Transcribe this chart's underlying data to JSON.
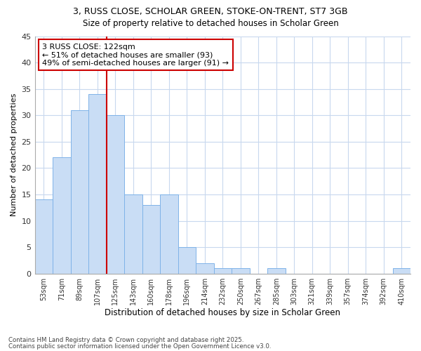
{
  "title1": "3, RUSS CLOSE, SCHOLAR GREEN, STOKE-ON-TRENT, ST7 3GB",
  "title2": "Size of property relative to detached houses in Scholar Green",
  "xlabel": "Distribution of detached houses by size in Scholar Green",
  "ylabel": "Number of detached properties",
  "categories": [
    "53sqm",
    "71sqm",
    "89sqm",
    "107sqm",
    "125sqm",
    "143sqm",
    "160sqm",
    "178sqm",
    "196sqm",
    "214sqm",
    "232sqm",
    "250sqm",
    "267sqm",
    "285sqm",
    "303sqm",
    "321sqm",
    "339sqm",
    "357sqm",
    "374sqm",
    "392sqm",
    "410sqm"
  ],
  "values": [
    14,
    22,
    31,
    34,
    30,
    15,
    13,
    15,
    5,
    2,
    1,
    1,
    0,
    1,
    0,
    0,
    0,
    0,
    0,
    0,
    1
  ],
  "bar_color": "#c9ddf5",
  "bar_edge_color": "#7fb3e8",
  "background_color": "#ffffff",
  "grid_color": "#c8d8ee",
  "vline_color": "#cc0000",
  "vline_pos": 4,
  "annotation_title": "3 RUSS CLOSE: 122sqm",
  "annotation_line1": "← 51% of detached houses are smaller (93)",
  "annotation_line2": "49% of semi-detached houses are larger (91) →",
  "annotation_box_color": "white",
  "annotation_box_edge": "#cc0000",
  "ylim": [
    0,
    45
  ],
  "yticks": [
    0,
    5,
    10,
    15,
    20,
    25,
    30,
    35,
    40,
    45
  ],
  "footer1": "Contains HM Land Registry data © Crown copyright and database right 2025.",
  "footer2": "Contains public sector information licensed under the Open Government Licence v3.0."
}
